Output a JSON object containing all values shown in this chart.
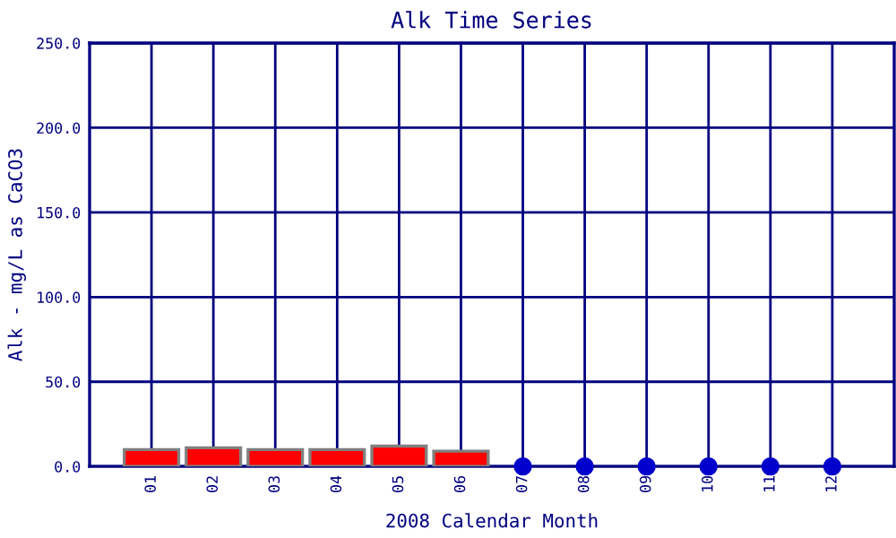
{
  "chart_data": {
    "type": "bar",
    "title": "Alk Time Series",
    "xlabel": "2008 Calendar Month",
    "ylabel": "Alk - mg/L as CaCO3",
    "categories": [
      "01",
      "02",
      "03",
      "04",
      "05",
      "06",
      "07",
      "08",
      "09",
      "10",
      "11",
      "12"
    ],
    "series": [
      {
        "color": "#ff0000",
        "values": [
          10,
          11,
          10,
          10,
          12,
          9,
          null,
          null,
          null,
          null,
          null,
          null
        ]
      },
      {
        "type": "scatter",
        "color": "#0000cc",
        "marker": "circle",
        "values": [
          null,
          null,
          null,
          null,
          null,
          null,
          0,
          0,
          0,
          0,
          0,
          0
        ]
      }
    ],
    "ylim": [
      0,
      250
    ],
    "yticks": [
      {
        "value": 0,
        "label": "0.0"
      },
      {
        "value": 50,
        "label": "50.0"
      },
      {
        "value": 100,
        "label": "100.0"
      },
      {
        "value": 150,
        "label": "150.0"
      },
      {
        "value": 200,
        "label": "200.0"
      },
      {
        "value": 250,
        "label": "250.0"
      }
    ],
    "grid": true,
    "legend": false
  }
}
